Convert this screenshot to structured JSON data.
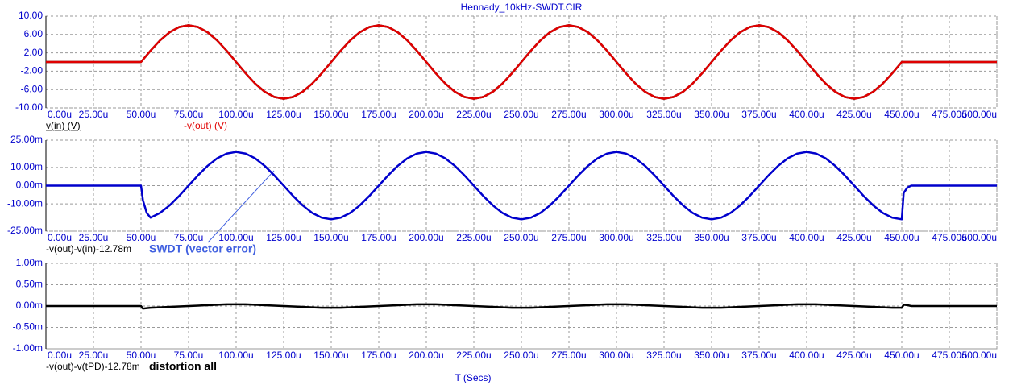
{
  "chart_data": [
    {
      "type": "line",
      "title": "Hennady_10kHz-SWDT.CIR",
      "x": [
        0,
        50,
        55,
        60,
        65,
        70,
        75,
        80,
        85,
        90,
        95,
        100,
        105,
        110,
        115,
        120,
        125,
        130,
        135,
        140,
        145,
        150,
        155,
        160,
        165,
        170,
        175,
        180,
        185,
        190,
        195,
        200,
        205,
        210,
        215,
        220,
        225,
        230,
        235,
        240,
        245,
        250,
        255,
        260,
        265,
        270,
        275,
        280,
        285,
        290,
        295,
        300,
        305,
        310,
        315,
        320,
        325,
        330,
        335,
        340,
        345,
        350,
        355,
        360,
        365,
        370,
        375,
        380,
        385,
        390,
        395,
        400,
        405,
        410,
        415,
        420,
        425,
        430,
        435,
        440,
        445,
        450,
        500
      ],
      "series": [
        {
          "name": "v(in) (V)",
          "color": "#000000",
          "label_color": "#000000",
          "values": [
            0,
            0,
            2.47,
            4.7,
            6.47,
            7.61,
            8,
            7.61,
            6.47,
            4.7,
            2.47,
            0,
            -2.47,
            -4.7,
            -6.47,
            -7.61,
            -8,
            -7.61,
            -6.47,
            -4.7,
            -2.47,
            0,
            2.47,
            4.7,
            6.47,
            7.61,
            8,
            7.61,
            6.47,
            4.7,
            2.47,
            0,
            -2.47,
            -4.7,
            -6.47,
            -7.61,
            -8,
            -7.61,
            -6.47,
            -4.7,
            -2.47,
            0,
            2.47,
            4.7,
            6.47,
            7.61,
            8,
            7.61,
            6.47,
            4.7,
            2.47,
            0,
            -2.47,
            -4.7,
            -6.47,
            -7.61,
            -8,
            -7.61,
            -6.47,
            -4.7,
            -2.47,
            0,
            2.47,
            4.7,
            6.47,
            7.61,
            8,
            7.61,
            6.47,
            4.7,
            2.47,
            0,
            -2.47,
            -4.7,
            -6.47,
            -7.61,
            -8,
            -7.61,
            -6.47,
            -4.7,
            -2.47,
            0,
            0
          ]
        },
        {
          "name": "-v(out) (V)",
          "color": "#e00000",
          "label_color": "#e00000",
          "values": [
            0,
            0,
            2.47,
            4.7,
            6.47,
            7.61,
            8,
            7.61,
            6.47,
            4.7,
            2.47,
            0,
            -2.47,
            -4.7,
            -6.47,
            -7.61,
            -8,
            -7.61,
            -6.47,
            -4.7,
            -2.47,
            0,
            2.47,
            4.7,
            6.47,
            7.61,
            8,
            7.61,
            6.47,
            4.7,
            2.47,
            0,
            -2.47,
            -4.7,
            -6.47,
            -7.61,
            -8,
            -7.61,
            -6.47,
            -4.7,
            -2.47,
            0,
            2.47,
            4.7,
            6.47,
            7.61,
            8,
            7.61,
            6.47,
            4.7,
            2.47,
            0,
            -2.47,
            -4.7,
            -6.47,
            -7.61,
            -8,
            -7.61,
            -6.47,
            -4.7,
            -2.47,
            0,
            2.47,
            4.7,
            6.47,
            7.61,
            8,
            7.61,
            6.47,
            4.7,
            2.47,
            0,
            -2.47,
            -4.7,
            -6.47,
            -7.61,
            -8,
            -7.61,
            -6.47,
            -4.7,
            -2.47,
            0,
            0
          ]
        }
      ],
      "xlim": [
        0,
        500
      ],
      "xticks": [
        {
          "value": 0,
          "label": "0.00u"
        },
        {
          "value": 25,
          "label": "25.00u"
        },
        {
          "value": 50,
          "label": "50.00u"
        },
        {
          "value": 75,
          "label": "75.00u"
        },
        {
          "value": 100,
          "label": "100.00u"
        },
        {
          "value": 125,
          "label": "125.00u"
        },
        {
          "value": 150,
          "label": "150.00u"
        },
        {
          "value": 175,
          "label": "175.00u"
        },
        {
          "value": 200,
          "label": "200.00u"
        },
        {
          "value": 225,
          "label": "225.00u"
        },
        {
          "value": 250,
          "label": "250.00u"
        },
        {
          "value": 275,
          "label": "275.00u"
        },
        {
          "value": 300,
          "label": "300.00u"
        },
        {
          "value": 325,
          "label": "325.00u"
        },
        {
          "value": 350,
          "label": "350.00u"
        },
        {
          "value": 375,
          "label": "375.00u"
        },
        {
          "value": 400,
          "label": "400.00u"
        },
        {
          "value": 425,
          "label": "425.00u"
        },
        {
          "value": 450,
          "label": "450.00u"
        },
        {
          "value": 475,
          "label": "475.00u"
        },
        {
          "value": 500,
          "label": "500.00u"
        }
      ],
      "ylim": [
        -10,
        10
      ],
      "yticks": [
        {
          "value": 10,
          "label": "10.00"
        },
        {
          "value": 6,
          "label": "6.00"
        },
        {
          "value": 2,
          "label": "2.00"
        },
        {
          "value": -2,
          "label": "-2.00"
        },
        {
          "value": -6,
          "label": "-6.00"
        },
        {
          "value": -10,
          "label": "-10.00"
        }
      ],
      "grid": true
    },
    {
      "type": "line",
      "annotation": "SWDT (vector error)",
      "x": [
        0,
        50,
        51,
        53,
        55,
        60,
        65,
        70,
        75,
        80,
        85,
        90,
        95,
        100,
        105,
        110,
        115,
        120,
        125,
        130,
        135,
        140,
        145,
        150,
        155,
        160,
        165,
        170,
        175,
        180,
        185,
        190,
        195,
        200,
        205,
        210,
        215,
        220,
        225,
        230,
        235,
        240,
        245,
        250,
        255,
        260,
        265,
        270,
        275,
        280,
        285,
        290,
        295,
        300,
        305,
        310,
        315,
        320,
        325,
        330,
        335,
        340,
        345,
        350,
        355,
        360,
        365,
        370,
        375,
        380,
        385,
        390,
        395,
        400,
        405,
        410,
        415,
        420,
        425,
        430,
        435,
        440,
        445,
        450,
        451,
        453,
        455,
        500
      ],
      "series": [
        {
          "name": "-v(out)-v(in)-12.78m",
          "color": "#0000cc",
          "label_color": "#000000",
          "values": [
            0,
            0,
            -8,
            -15,
            -17.59,
            -14.97,
            -10.87,
            -5.72,
            0,
            5.72,
            10.87,
            14.97,
            17.59,
            18.5,
            17.59,
            14.97,
            10.87,
            5.72,
            0,
            -5.72,
            -10.87,
            -14.97,
            -17.59,
            -18.5,
            -17.59,
            -14.97,
            -10.87,
            -5.72,
            0,
            5.72,
            10.87,
            14.97,
            17.59,
            18.5,
            17.59,
            14.97,
            10.87,
            5.72,
            0,
            -5.72,
            -10.87,
            -14.97,
            -17.59,
            -18.5,
            -17.59,
            -14.97,
            -10.87,
            -5.72,
            0,
            5.72,
            10.87,
            14.97,
            17.59,
            18.5,
            17.59,
            14.97,
            10.87,
            5.72,
            0,
            -5.72,
            -10.87,
            -14.97,
            -17.59,
            -18.5,
            -17.59,
            -14.97,
            -10.87,
            -5.72,
            0,
            5.72,
            10.87,
            14.97,
            17.59,
            18.5,
            17.59,
            14.97,
            10.87,
            5.72,
            0,
            -5.72,
            -10.87,
            -14.97,
            -17.59,
            -18.5,
            -4,
            -1,
            0,
            0
          ]
        }
      ],
      "xlim": [
        0,
        500
      ],
      "xticks": [
        {
          "value": 0,
          "label": "0.00u"
        },
        {
          "value": 25,
          "label": "25.00u"
        },
        {
          "value": 50,
          "label": "50.00u"
        },
        {
          "value": 75,
          "label": "75.00u"
        },
        {
          "value": 100,
          "label": "100.00u"
        },
        {
          "value": 125,
          "label": "125.00u"
        },
        {
          "value": 150,
          "label": "150.00u"
        },
        {
          "value": 175,
          "label": "175.00u"
        },
        {
          "value": 200,
          "label": "200.00u"
        },
        {
          "value": 225,
          "label": "225.00u"
        },
        {
          "value": 250,
          "label": "250.00u"
        },
        {
          "value": 275,
          "label": "275.00u"
        },
        {
          "value": 300,
          "label": "300.00u"
        },
        {
          "value": 325,
          "label": "325.00u"
        },
        {
          "value": 350,
          "label": "350.00u"
        },
        {
          "value": 375,
          "label": "375.00u"
        },
        {
          "value": 400,
          "label": "400.00u"
        },
        {
          "value": 425,
          "label": "425.00u"
        },
        {
          "value": 450,
          "label": "450.00u"
        },
        {
          "value": 475,
          "label": "475.00u"
        },
        {
          "value": 500,
          "label": "500.00u"
        }
      ],
      "ylim": [
        -25,
        25
      ],
      "yticks": [
        {
          "value": 25,
          "label": "25.00m"
        },
        {
          "value": 10,
          "label": "10.00m"
        },
        {
          "value": 0,
          "label": "0.00m"
        },
        {
          "value": -10,
          "label": "-10.00m"
        },
        {
          "value": -25,
          "label": "-25.00m"
        }
      ],
      "grid": true
    },
    {
      "type": "line",
      "annotation": "distortion all",
      "xlabel": "T (Secs)",
      "x": [
        0,
        50,
        51,
        53,
        55,
        60,
        65,
        70,
        75,
        80,
        85,
        90,
        95,
        100,
        105,
        110,
        115,
        120,
        125,
        130,
        135,
        140,
        145,
        150,
        155,
        160,
        165,
        170,
        175,
        180,
        185,
        190,
        195,
        200,
        205,
        210,
        215,
        220,
        225,
        230,
        235,
        240,
        245,
        250,
        255,
        260,
        265,
        270,
        275,
        280,
        285,
        290,
        295,
        300,
        305,
        310,
        315,
        320,
        325,
        330,
        335,
        340,
        345,
        350,
        355,
        360,
        365,
        370,
        375,
        380,
        385,
        390,
        395,
        400,
        405,
        410,
        415,
        420,
        425,
        430,
        435,
        440,
        445,
        450,
        451,
        453,
        455,
        500
      ],
      "series": [
        {
          "name": "-v(out)-v(tPD)-12.78m",
          "color": "#000000",
          "label_color": "#000000",
          "values": [
            0,
            0,
            -0.06,
            -0.05,
            -0.04,
            -0.03,
            -0.02,
            -0.01,
            0,
            0.01,
            0.02,
            0.03,
            0.04,
            0.04,
            0.04,
            0.03,
            0.02,
            0.01,
            0,
            -0.01,
            -0.02,
            -0.03,
            -0.04,
            -0.04,
            -0.04,
            -0.03,
            -0.02,
            -0.01,
            0,
            0.01,
            0.02,
            0.03,
            0.04,
            0.04,
            0.04,
            0.03,
            0.02,
            0.01,
            0,
            -0.01,
            -0.02,
            -0.03,
            -0.04,
            -0.04,
            -0.04,
            -0.03,
            -0.02,
            -0.01,
            0,
            0.01,
            0.02,
            0.03,
            0.04,
            0.04,
            0.04,
            0.03,
            0.02,
            0.01,
            0,
            -0.01,
            -0.02,
            -0.03,
            -0.04,
            -0.04,
            -0.04,
            -0.03,
            -0.02,
            -0.01,
            0,
            0.01,
            0.02,
            0.03,
            0.04,
            0.04,
            0.04,
            0.03,
            0.02,
            0.01,
            0,
            -0.01,
            -0.02,
            -0.03,
            -0.04,
            -0.04,
            0.03,
            0.02,
            0,
            0
          ]
        }
      ],
      "xlim": [
        0,
        500
      ],
      "xticks": [
        {
          "value": 0,
          "label": "0.00u"
        },
        {
          "value": 25,
          "label": "25.00u"
        },
        {
          "value": 50,
          "label": "50.00u"
        },
        {
          "value": 75,
          "label": "75.00u"
        },
        {
          "value": 100,
          "label": "100.00u"
        },
        {
          "value": 125,
          "label": "125.00u"
        },
        {
          "value": 150,
          "label": "150.00u"
        },
        {
          "value": 175,
          "label": "175.00u"
        },
        {
          "value": 200,
          "label": "200.00u"
        },
        {
          "value": 225,
          "label": "225.00u"
        },
        {
          "value": 250,
          "label": "250.00u"
        },
        {
          "value": 275,
          "label": "275.00u"
        },
        {
          "value": 300,
          "label": "300.00u"
        },
        {
          "value": 325,
          "label": "325.00u"
        },
        {
          "value": 350,
          "label": "350.00u"
        },
        {
          "value": 375,
          "label": "375.00u"
        },
        {
          "value": 400,
          "label": "400.00u"
        },
        {
          "value": 425,
          "label": "425.00u"
        },
        {
          "value": 450,
          "label": "450.00u"
        },
        {
          "value": 475,
          "label": "475.00u"
        },
        {
          "value": 500,
          "label": "500.00u"
        }
      ],
      "ylim": [
        -1,
        1
      ],
      "yticks": [
        {
          "value": 1,
          "label": "1.00m"
        },
        {
          "value": 0.5,
          "label": "0.50m"
        },
        {
          "value": 0,
          "label": "0.00m"
        },
        {
          "value": -0.5,
          "label": "-0.50m"
        },
        {
          "value": -1,
          "label": "-1.00m"
        }
      ],
      "grid": true
    }
  ]
}
